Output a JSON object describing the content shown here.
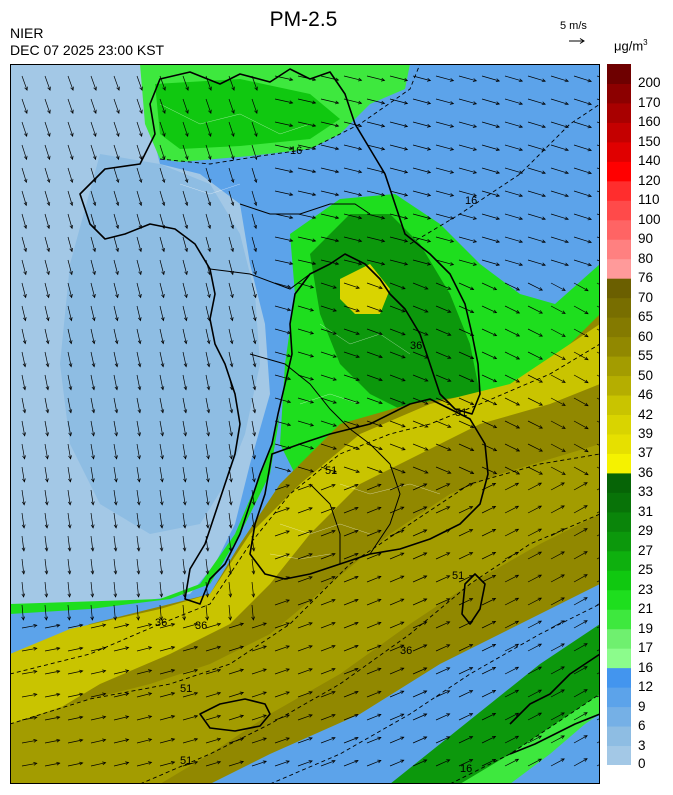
{
  "header": {
    "title": "PM-2.5",
    "agency": "NIER",
    "timestamp": "DEC 07 2025 23:00 KST",
    "vector_label": "5 m/s",
    "unit_base": "μg/m",
    "unit_exp": "3"
  },
  "legend": {
    "levels": [
      {
        "label": "0",
        "color": "#a3c8e6"
      },
      {
        "label": "3",
        "color": "#8ebde3"
      },
      {
        "label": "6",
        "color": "#75b0e6"
      },
      {
        "label": "9",
        "color": "#5ca3ea"
      },
      {
        "label": "12",
        "color": "#4395ee"
      },
      {
        "label": "16",
        "color": "#8cfc8c"
      },
      {
        "label": "17",
        "color": "#6ff06f"
      },
      {
        "label": "19",
        "color": "#3ee83e"
      },
      {
        "label": "21",
        "color": "#1ede1e"
      },
      {
        "label": "23",
        "color": "#10c810"
      },
      {
        "label": "25",
        "color": "#0eb00e"
      },
      {
        "label": "27",
        "color": "#0c980c"
      },
      {
        "label": "29",
        "color": "#0a850a"
      },
      {
        "label": "31",
        "color": "#087308"
      },
      {
        "label": "33",
        "color": "#066406"
      },
      {
        "label": "36",
        "color": "#f5f200"
      },
      {
        "label": "37",
        "color": "#e6e000"
      },
      {
        "label": "39",
        "color": "#d9d400"
      },
      {
        "label": "42",
        "color": "#c9c400"
      },
      {
        "label": "46",
        "color": "#b5ae00"
      },
      {
        "label": "50",
        "color": "#a39c00"
      },
      {
        "label": "55",
        "color": "#918800"
      },
      {
        "label": "60",
        "color": "#847a00"
      },
      {
        "label": "65",
        "color": "#786e00"
      },
      {
        "label": "70",
        "color": "#6b5f00"
      },
      {
        "label": "76",
        "color": "#ff9a9a"
      },
      {
        "label": "80",
        "color": "#ff8080"
      },
      {
        "label": "90",
        "color": "#ff6464"
      },
      {
        "label": "100",
        "color": "#ff4a4a"
      },
      {
        "label": "110",
        "color": "#ff2d2d"
      },
      {
        "label": "120",
        "color": "#ff0000"
      },
      {
        "label": "140",
        "color": "#e00000"
      },
      {
        "label": "150",
        "color": "#c40000"
      },
      {
        "label": "160",
        "color": "#a80000"
      },
      {
        "label": "170",
        "color": "#8c0000"
      },
      {
        "label": "200",
        "color": "#6e0000"
      }
    ]
  },
  "map": {
    "contour_labels": [
      "16",
      "16",
      "36",
      "51",
      "51",
      "36",
      "36",
      "51",
      "51",
      "36",
      "51",
      "16"
    ]
  }
}
